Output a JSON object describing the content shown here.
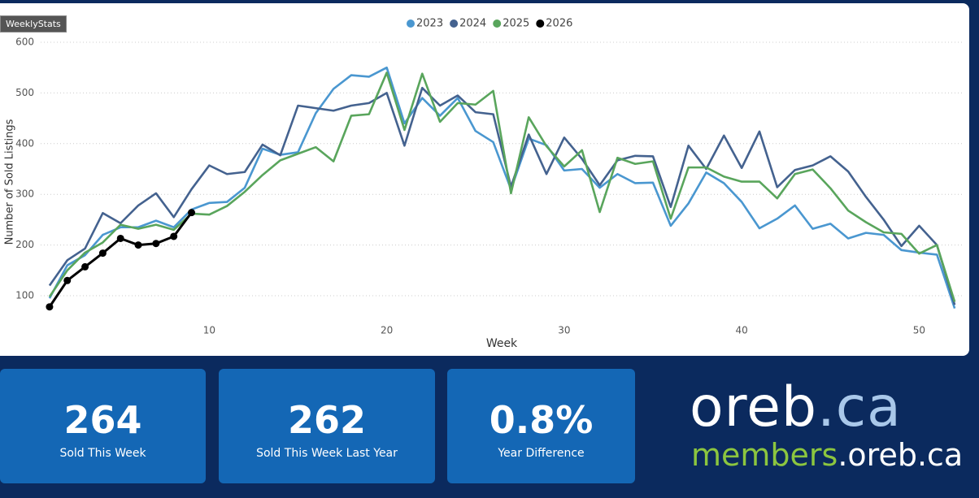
{
  "tag": "WeeklyStats",
  "chart_data": {
    "type": "line",
    "x": [
      1,
      2,
      3,
      4,
      5,
      6,
      7,
      8,
      9,
      10,
      11,
      12,
      13,
      14,
      15,
      16,
      17,
      18,
      19,
      20,
      21,
      22,
      23,
      24,
      25,
      26,
      27,
      28,
      29,
      30,
      31,
      32,
      33,
      34,
      35,
      36,
      37,
      38,
      39,
      40,
      41,
      42,
      43,
      44,
      45,
      46,
      47,
      48,
      49,
      50,
      51,
      52
    ],
    "xlabel": "Week",
    "ylabel": "Number of Sold Listings",
    "xlim": [
      0.5,
      52.5
    ],
    "xticks": [
      10,
      20,
      30,
      40,
      50
    ],
    "ylim": [
      50,
      610
    ],
    "yticks": [
      100,
      200,
      300,
      400,
      500,
      600
    ],
    "grid": true,
    "series": [
      {
        "name": "2023",
        "color": "#4a97d0",
        "values": [
          95,
          160,
          180,
          220,
          235,
          235,
          248,
          235,
          270,
          283,
          285,
          313,
          390,
          378,
          383,
          460,
          508,
          535,
          532,
          550,
          440,
          490,
          455,
          490,
          425,
          403,
          310,
          410,
          397,
          347,
          350,
          313,
          340,
          322,
          323,
          238,
          282,
          343,
          322,
          285,
          233,
          252,
          278,
          232,
          242,
          213,
          224,
          220,
          190,
          185,
          181,
          75
        ]
      },
      {
        "name": "2024",
        "color": "#44628f",
        "values": [
          120,
          170,
          193,
          263,
          243,
          278,
          302,
          255,
          310,
          357,
          340,
          344,
          398,
          377,
          475,
          470,
          465,
          475,
          480,
          500,
          396,
          510,
          475,
          495,
          462,
          458,
          315,
          418,
          340,
          412,
          370,
          318,
          367,
          376,
          375,
          275,
          396,
          350,
          416,
          352,
          424,
          314,
          348,
          357,
          375,
          345,
          295,
          250,
          198,
          238,
          200,
          82
        ]
      },
      {
        "name": "2025",
        "color": "#59a55c",
        "values": [
          98,
          150,
          185,
          205,
          240,
          232,
          240,
          230,
          262,
          260,
          277,
          305,
          338,
          367,
          380,
          393,
          365,
          455,
          458,
          540,
          427,
          538,
          443,
          480,
          477,
          504,
          302,
          452,
          395,
          355,
          387,
          265,
          372,
          360,
          365,
          252,
          353,
          353,
          335,
          325,
          325,
          292,
          340,
          349,
          312,
          268,
          245,
          225,
          222,
          183,
          200,
          88
        ]
      },
      {
        "name": "2026",
        "color": "#000000",
        "markers": true,
        "values": [
          78,
          130,
          157,
          184,
          213,
          200,
          203,
          217,
          264,
          null,
          null,
          null,
          null,
          null,
          null,
          null,
          null,
          null,
          null,
          null,
          null,
          null,
          null,
          null,
          null,
          null,
          null,
          null,
          null,
          null,
          null,
          null,
          null,
          null,
          null,
          null,
          null,
          null,
          null,
          null,
          null,
          null,
          null,
          null,
          null,
          null,
          null,
          null,
          null,
          null,
          null,
          null
        ]
      }
    ]
  },
  "cards": [
    {
      "value": "264",
      "label": "Sold This Week"
    },
    {
      "value": "262",
      "label": "Sold This Week Last Year"
    },
    {
      "value": "0.8%",
      "label": "Year Difference"
    }
  ],
  "logo": {
    "line1": [
      "oreb",
      ".ca"
    ],
    "line2": [
      "members",
      ".oreb.ca"
    ]
  }
}
